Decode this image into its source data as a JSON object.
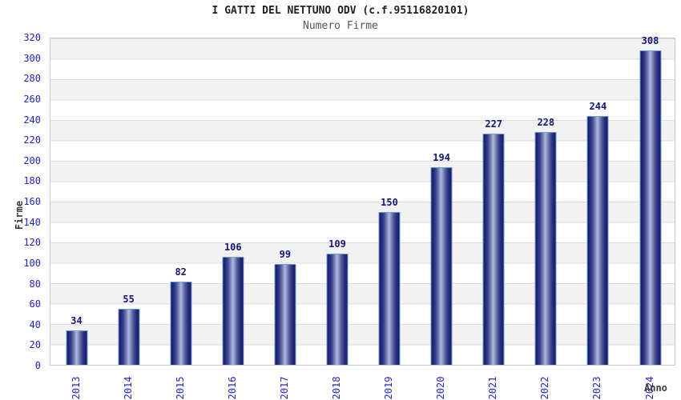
{
  "header": {
    "title": "I GATTI DEL NETTUNO ODV (c.f.95116820101)",
    "subtitle": "Numero Firme"
  },
  "axes": {
    "y_title": "Firme",
    "x_title": "Anno"
  },
  "colors": {
    "tick_label": "#2424cc",
    "value_label": "#15157a",
    "bar_edge": "#171c67",
    "bar_highlight": "#aeb7da",
    "bar_outline": "#6c9fd8",
    "band_gray": "#f2f2f2",
    "band_white": "#ffffff",
    "gridline": "#dcdcdc",
    "title_text": "#222222",
    "subtitle_text": "#555555"
  },
  "chart_data": {
    "type": "bar",
    "title": "I GATTI DEL NETTUNO ODV (c.f.95116820101)",
    "subtitle": "Numero Firme",
    "xlabel": "Anno",
    "ylabel": "Firme",
    "categories": [
      "2013",
      "2014",
      "2015",
      "2016",
      "2017",
      "2018",
      "2019",
      "2020",
      "2021",
      "2022",
      "2023",
      "2024"
    ],
    "values": [
      34,
      55,
      82,
      106,
      99,
      109,
      150,
      194,
      227,
      228,
      244,
      308
    ],
    "ylim": [
      0,
      320
    ],
    "ytick_step": 20,
    "yticks": [
      0,
      20,
      40,
      60,
      80,
      100,
      120,
      140,
      160,
      180,
      200,
      220,
      240,
      260,
      280,
      300,
      320
    ],
    "grid": "horizontal-bands-alternating",
    "legend": "none",
    "bar_value_labels": true
  }
}
